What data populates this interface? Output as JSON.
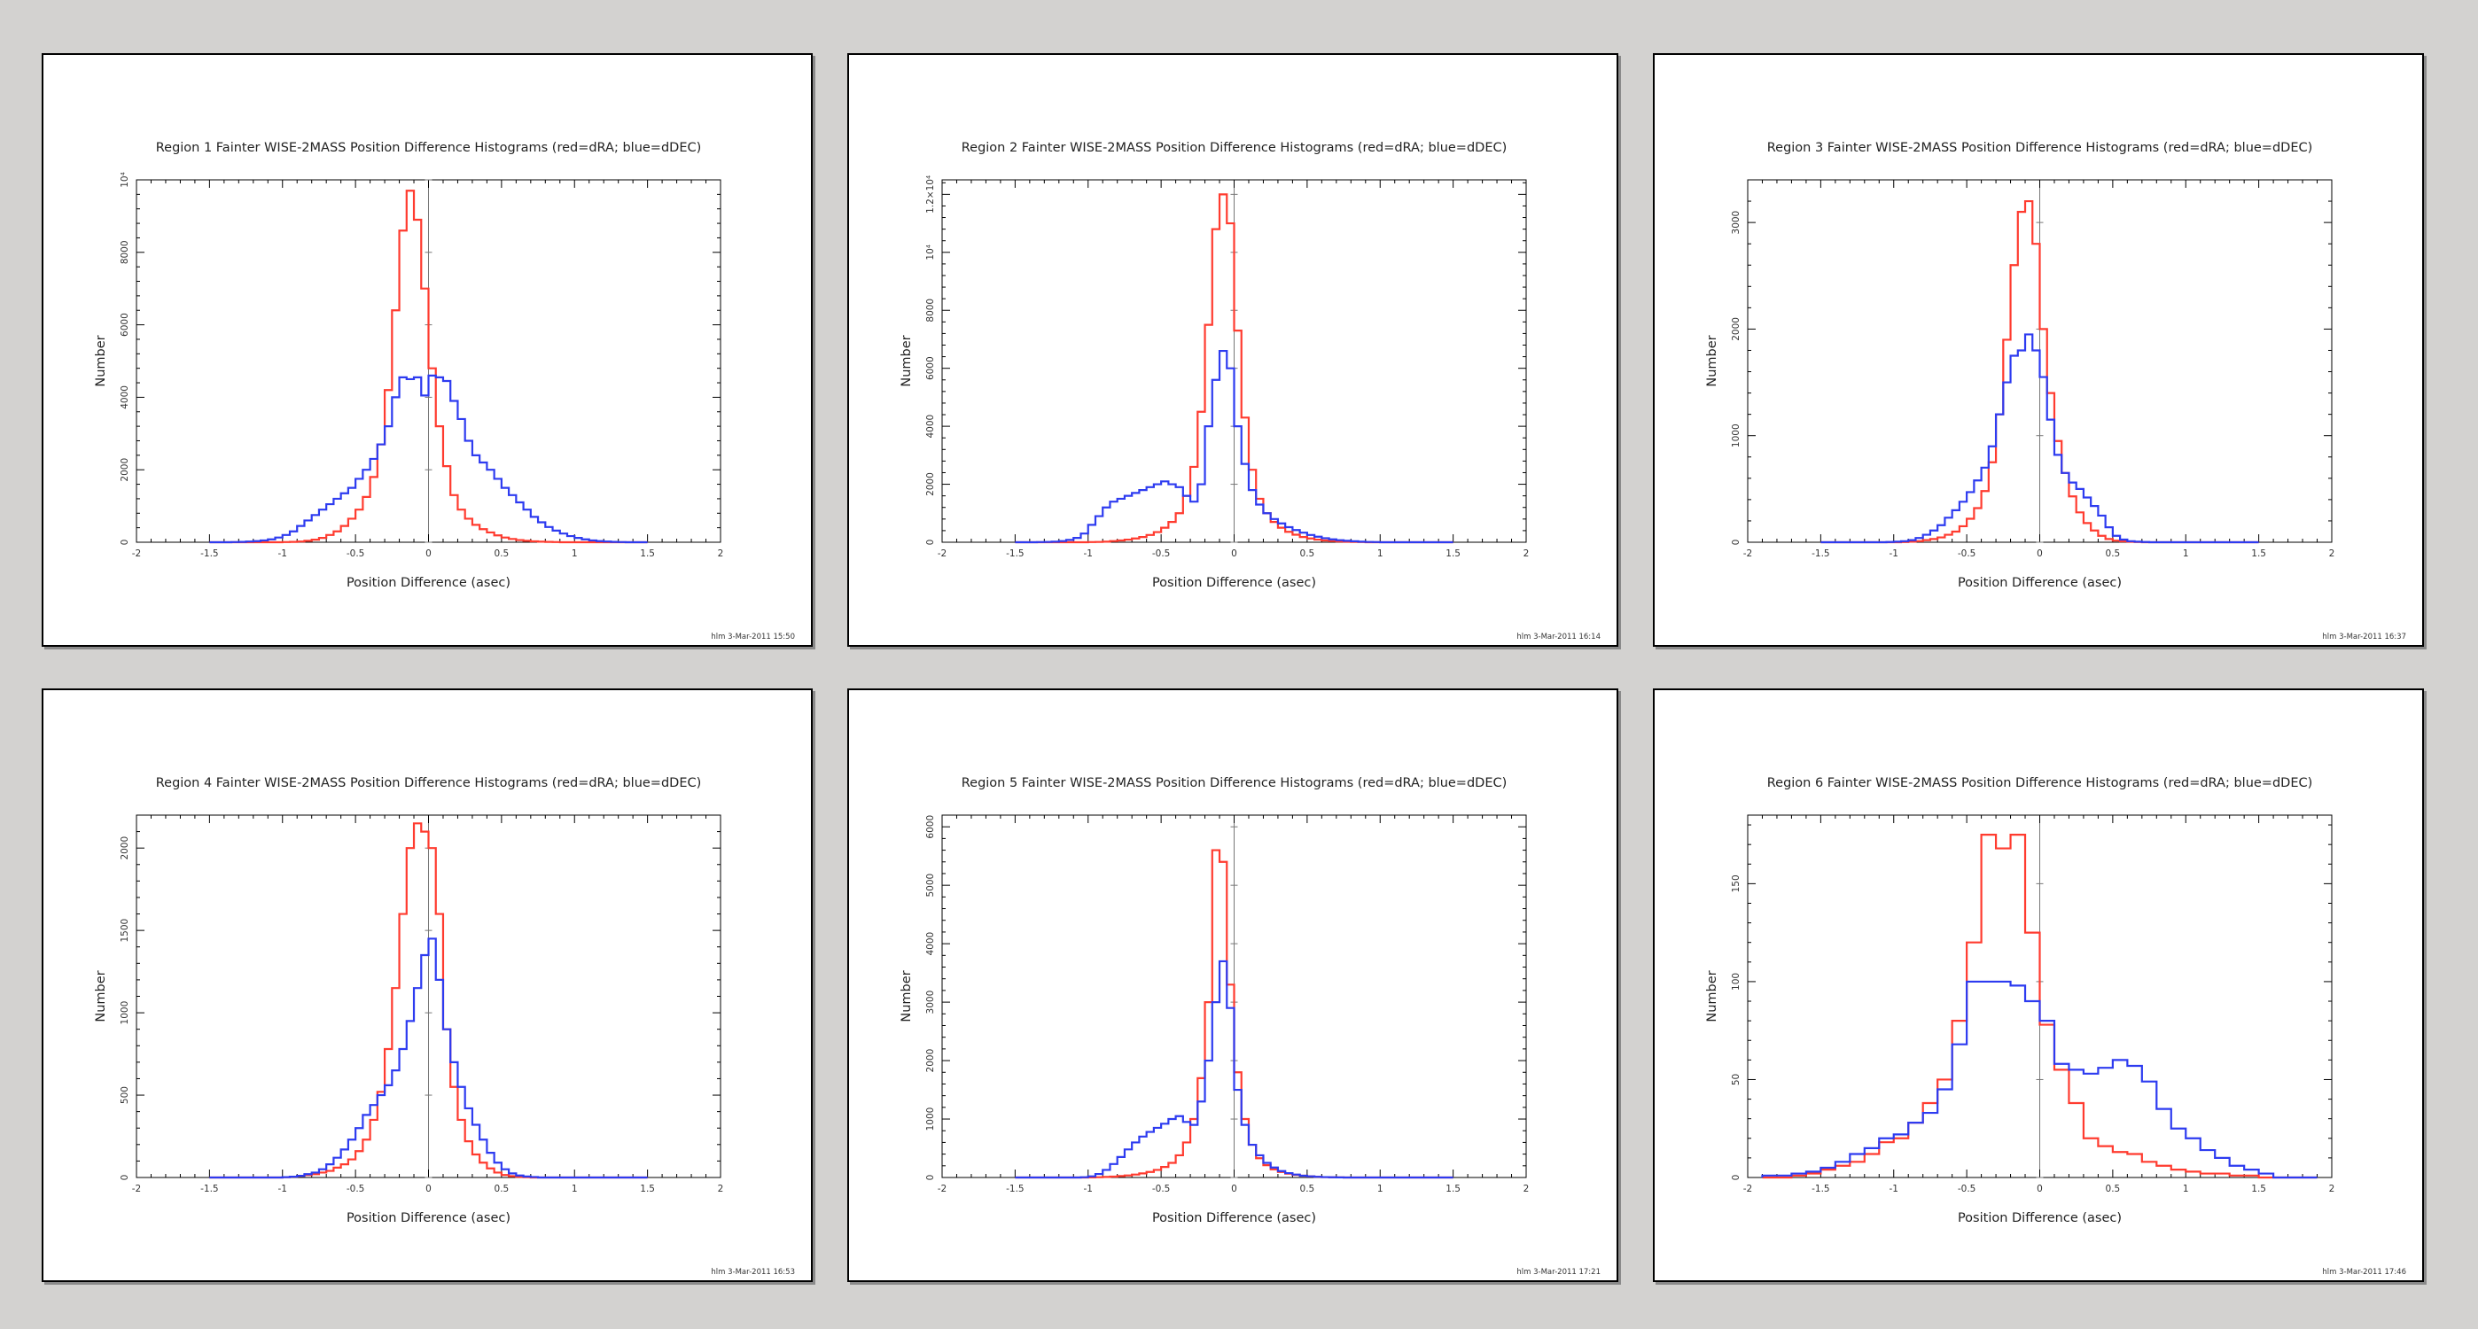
{
  "colors": {
    "dRA": "#ff3b2f",
    "dDEC": "#2d3bf0",
    "frame": "#000000",
    "zero_line": "#777777"
  },
  "chart_data": [
    {
      "type": "histogram",
      "title": "Region 1 Fainter WISE-2MASS Position Difference Histograms (red=dRA; blue=dDEC)",
      "xlabel": "Position Difference (asec)",
      "ylabel": "Number",
      "stamp": "hlm  3-Mar-2011 15:50",
      "xlim": [
        -2,
        2
      ],
      "ylim": [
        0,
        10000
      ],
      "xticks": [
        -2,
        -1.5,
        -1,
        -0.5,
        0,
        0.5,
        1,
        1.5,
        2
      ],
      "xtick_labels": [
        "-2",
        "-1.5",
        "-1",
        "-0.5",
        "0",
        "0.5",
        "1",
        "1.5",
        "2"
      ],
      "yticks": [
        0,
        2000,
        4000,
        6000,
        8000,
        10000
      ],
      "ytick_labels": [
        "0",
        "2000",
        "4000",
        "6000",
        "8000",
        "10⁴"
      ],
      "bin_start": -1.5,
      "bin_width": 0.05,
      "series": [
        {
          "color": "#ff3b2f",
          "values": [
            0,
            0,
            0,
            0,
            0,
            0,
            0,
            0,
            0,
            0,
            5,
            10,
            20,
            40,
            70,
            120,
            200,
            300,
            450,
            650,
            900,
            1250,
            1800,
            2700,
            4200,
            6400,
            8600,
            9700,
            8900,
            7000,
            4800,
            3200,
            2100,
            1300,
            900,
            650,
            480,
            360,
            270,
            190,
            130,
            90,
            60,
            40,
            25,
            15,
            10,
            5,
            0,
            0,
            0,
            0,
            0,
            0,
            0,
            0,
            0,
            0,
            0,
            0
          ]
        },
        {
          "color": "#2d3bf0",
          "values": [
            0,
            0,
            0,
            5,
            10,
            20,
            30,
            50,
            80,
            130,
            200,
            300,
            450,
            600,
            750,
            900,
            1050,
            1200,
            1350,
            1500,
            1750,
            2000,
            2300,
            2700,
            3200,
            4000,
            4550,
            4500,
            4550,
            4050,
            4600,
            4550,
            4450,
            3900,
            3400,
            2800,
            2400,
            2200,
            2000,
            1750,
            1500,
            1300,
            1100,
            900,
            700,
            550,
            420,
            320,
            240,
            170,
            120,
            80,
            50,
            30,
            20,
            10,
            5,
            0,
            0,
            0
          ]
        }
      ]
    },
    {
      "type": "histogram",
      "title": "Region 2 Fainter WISE-2MASS Position Difference Histograms (red=dRA; blue=dDEC)",
      "xlabel": "Position Difference (asec)",
      "ylabel": "Number",
      "stamp": "hlm  3-Mar-2011 16:14",
      "xlim": [
        -2,
        2
      ],
      "ylim": [
        0,
        12500
      ],
      "xticks": [
        -2,
        -1.5,
        -1,
        -0.5,
        0,
        0.5,
        1,
        1.5,
        2
      ],
      "xtick_labels": [
        "-2",
        "-1.5",
        "-1",
        "-0.5",
        "0",
        "0.5",
        "1",
        "1.5",
        "2"
      ],
      "yticks": [
        0,
        2000,
        4000,
        6000,
        8000,
        10000,
        12000
      ],
      "ytick_labels": [
        "0",
        "2000",
        "4000",
        "6000",
        "8000",
        "10⁴",
        "1.2×10⁴"
      ],
      "bin_start": -1.5,
      "bin_width": 0.05,
      "series": [
        {
          "color": "#ff3b2f",
          "values": [
            0,
            0,
            0,
            0,
            0,
            0,
            0,
            0,
            0,
            0,
            5,
            10,
            20,
            40,
            60,
            90,
            130,
            180,
            250,
            350,
            500,
            700,
            1000,
            1600,
            2600,
            4500,
            7500,
            10800,
            12000,
            11000,
            7300,
            4300,
            2500,
            1500,
            1000,
            700,
            500,
            360,
            260,
            180,
            130,
            90,
            60,
            40,
            25,
            15,
            10,
            5,
            0,
            0,
            0,
            0,
            0,
            0,
            0,
            0,
            0,
            0,
            0,
            0
          ]
        },
        {
          "color": "#2d3bf0",
          "values": [
            0,
            0,
            0,
            5,
            10,
            20,
            40,
            80,
            150,
            300,
            600,
            900,
            1200,
            1400,
            1500,
            1600,
            1700,
            1800,
            1900,
            2000,
            2100,
            2000,
            1900,
            1600,
            1400,
            2000,
            4000,
            5600,
            6600,
            6000,
            4000,
            2700,
            1800,
            1300,
            1000,
            800,
            650,
            520,
            420,
            330,
            250,
            190,
            140,
            100,
            70,
            50,
            35,
            20,
            10,
            5,
            0,
            0,
            0,
            0,
            0,
            0,
            0,
            0,
            0,
            0
          ]
        }
      ]
    },
    {
      "type": "histogram",
      "title": "Region 3 Fainter WISE-2MASS Position Difference Histograms (red=dRA; blue=dDEC)",
      "xlabel": "Position Difference (asec)",
      "ylabel": "Number",
      "stamp": "hlm  3-Mar-2011 16:37",
      "xlim": [
        -2,
        2
      ],
      "ylim": [
        0,
        3400
      ],
      "xticks": [
        -2,
        -1.5,
        -1,
        -0.5,
        0,
        0.5,
        1,
        1.5,
        2
      ],
      "xtick_labels": [
        "-2",
        "-1.5",
        "-1",
        "-0.5",
        "0",
        "0.5",
        "1",
        "1.5",
        "2"
      ],
      "yticks": [
        0,
        1000,
        2000,
        3000
      ],
      "ytick_labels": [
        "0",
        "1000",
        "2000",
        "3000"
      ],
      "bin_start": -1.5,
      "bin_width": 0.05,
      "series": [
        {
          "color": "#ff3b2f",
          "values": [
            0,
            0,
            0,
            0,
            0,
            0,
            0,
            0,
            0,
            0,
            0,
            2,
            5,
            10,
            20,
            30,
            45,
            70,
            100,
            150,
            220,
            320,
            480,
            750,
            1200,
            1900,
            2600,
            3100,
            3200,
            2800,
            2000,
            1400,
            950,
            650,
            430,
            280,
            180,
            110,
            60,
            30,
            15,
            8,
            4,
            2,
            0,
            0,
            0,
            0,
            0,
            0,
            0,
            0,
            0,
            0,
            0,
            0,
            0,
            0,
            0,
            0
          ]
        },
        {
          "color": "#2d3bf0",
          "values": [
            0,
            0,
            0,
            0,
            0,
            0,
            0,
            0,
            0,
            2,
            5,
            10,
            20,
            40,
            70,
            110,
            160,
            230,
            300,
            380,
            470,
            580,
            700,
            900,
            1200,
            1500,
            1750,
            1800,
            1950,
            1800,
            1550,
            1150,
            820,
            650,
            560,
            500,
            420,
            340,
            250,
            140,
            60,
            25,
            10,
            5,
            2,
            0,
            0,
            0,
            0,
            0,
            0,
            0,
            0,
            0,
            0,
            0,
            0,
            0,
            0,
            0
          ]
        }
      ]
    },
    {
      "type": "histogram",
      "title": "Region 4 Fainter WISE-2MASS Position Difference Histograms (red=dRA; blue=dDEC)",
      "xlabel": "Position Difference (asec)",
      "ylabel": "Number",
      "stamp": "hlm  3-Mar-2011 16:53",
      "xlim": [
        -2,
        2
      ],
      "ylim": [
        0,
        2200
      ],
      "xticks": [
        -2,
        -1.5,
        -1,
        -0.5,
        0,
        0.5,
        1,
        1.5,
        2
      ],
      "xtick_labels": [
        "-2",
        "-1.5",
        "-1",
        "-0.5",
        "0",
        "0.5",
        "1",
        "1.5",
        "2"
      ],
      "yticks": [
        0,
        500,
        1000,
        1500,
        2000
      ],
      "ytick_labels": [
        "0",
        "500",
        "1000",
        "1500",
        "2000"
      ],
      "bin_start": -1.5,
      "bin_width": 0.05,
      "series": [
        {
          "color": "#ff3b2f",
          "values": [
            0,
            0,
            0,
            0,
            0,
            0,
            0,
            0,
            0,
            0,
            2,
            5,
            10,
            15,
            20,
            30,
            40,
            60,
            80,
            110,
            160,
            230,
            350,
            520,
            780,
            1150,
            1600,
            2000,
            2150,
            2100,
            2000,
            1600,
            900,
            550,
            350,
            220,
            140,
            90,
            55,
            30,
            15,
            8,
            4,
            2,
            0,
            0,
            0,
            0,
            0,
            0,
            0,
            0,
            0,
            0,
            0,
            0,
            0,
            0,
            0,
            0
          ]
        },
        {
          "color": "#2d3bf0",
          "values": [
            0,
            0,
            0,
            0,
            0,
            0,
            0,
            0,
            0,
            0,
            2,
            5,
            10,
            20,
            30,
            50,
            80,
            120,
            170,
            230,
            300,
            380,
            440,
            500,
            560,
            650,
            780,
            950,
            1150,
            1350,
            1450,
            1200,
            900,
            700,
            550,
            420,
            320,
            230,
            150,
            90,
            50,
            25,
            12,
            6,
            3,
            0,
            0,
            0,
            0,
            0,
            0,
            0,
            0,
            0,
            0,
            0,
            0,
            0,
            0,
            0
          ]
        }
      ]
    },
    {
      "type": "histogram",
      "title": "Region 5 Fainter WISE-2MASS Position Difference Histograms (red=dRA; blue=dDEC)",
      "xlabel": "Position Difference (asec)",
      "ylabel": "Number",
      "stamp": "hlm  3-Mar-2011 17:21",
      "xlim": [
        -2,
        2
      ],
      "ylim": [
        0,
        6200
      ],
      "xticks": [
        -2,
        -1.5,
        -1,
        -0.5,
        0,
        0.5,
        1,
        1.5,
        2
      ],
      "xtick_labels": [
        "-2",
        "-1.5",
        "-1",
        "-0.5",
        "0",
        "0.5",
        "1",
        "1.5",
        "2"
      ],
      "yticks": [
        0,
        1000,
        2000,
        3000,
        4000,
        5000,
        6000
      ],
      "ytick_labels": [
        "0",
        "1000",
        "2000",
        "3000",
        "4000",
        "5000",
        "6000"
      ],
      "bin_start": -1.5,
      "bin_width": 0.05,
      "series": [
        {
          "color": "#ff3b2f",
          "values": [
            0,
            0,
            0,
            0,
            0,
            0,
            0,
            0,
            0,
            0,
            2,
            5,
            10,
            15,
            25,
            35,
            50,
            70,
            95,
            130,
            180,
            250,
            380,
            600,
            1000,
            1700,
            3000,
            5600,
            5400,
            3300,
            1800,
            1000,
            560,
            330,
            210,
            140,
            95,
            65,
            45,
            30,
            20,
            12,
            7,
            4,
            2,
            0,
            0,
            0,
            0,
            0,
            0,
            0,
            0,
            0,
            0,
            0,
            0,
            0,
            0,
            0
          ]
        },
        {
          "color": "#2d3bf0",
          "values": [
            0,
            0,
            0,
            0,
            0,
            0,
            0,
            0,
            0,
            5,
            20,
            60,
            130,
            230,
            350,
            480,
            600,
            700,
            780,
            850,
            920,
            1000,
            1050,
            950,
            900,
            1300,
            2000,
            3000,
            3700,
            2900,
            1500,
            900,
            560,
            380,
            250,
            170,
            110,
            75,
            50,
            30,
            20,
            12,
            7,
            4,
            2,
            0,
            0,
            0,
            0,
            0,
            0,
            0,
            0,
            0,
            0,
            0,
            0,
            0,
            0,
            0
          ]
        }
      ]
    },
    {
      "type": "histogram",
      "title": "Region 6 Fainter WISE-2MASS Position Difference Histograms (red=dRA; blue=dDEC)",
      "xlabel": "Position Difference (asec)",
      "ylabel": "Number",
      "stamp": "hlm  3-Mar-2011 17:46",
      "xlim": [
        -2,
        2
      ],
      "ylim": [
        0,
        185
      ],
      "xticks": [
        -2,
        -1.5,
        -1,
        -0.5,
        0,
        0.5,
        1,
        1.5,
        2
      ],
      "xtick_labels": [
        "-2",
        "-1.5",
        "-1",
        "-0.5",
        "0",
        "0.5",
        "1",
        "1.5",
        "2"
      ],
      "yticks": [
        0,
        50,
        100,
        150
      ],
      "ytick_labels": [
        "0",
        "50",
        "100",
        "150"
      ],
      "bin_start": -1.9,
      "bin_width": 0.1,
      "series": [
        {
          "color": "#ff3b2f",
          "values": [
            0,
            0,
            1,
            2,
            4,
            6,
            8,
            12,
            18,
            20,
            28,
            38,
            50,
            80,
            120,
            175,
            168,
            175,
            125,
            78,
            55,
            38,
            20,
            16,
            13,
            12,
            8,
            6,
            4,
            3,
            2,
            2,
            1,
            1,
            0,
            0,
            0,
            0
          ]
        },
        {
          "color": "#2d3bf0",
          "values": [
            1,
            1,
            2,
            3,
            5,
            8,
            12,
            15,
            20,
            22,
            28,
            33,
            45,
            68,
            100,
            100,
            100,
            98,
            90,
            80,
            58,
            55,
            53,
            56,
            60,
            57,
            49,
            35,
            25,
            20,
            14,
            10,
            6,
            4,
            2,
            0,
            0,
            0
          ]
        }
      ]
    }
  ]
}
